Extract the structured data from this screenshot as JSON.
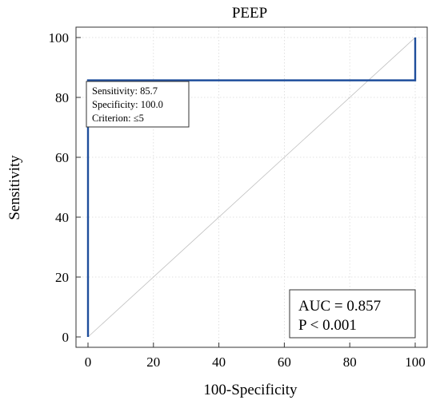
{
  "chart_data": {
    "type": "line",
    "title": "PEEP",
    "xlabel": "100-Specificity",
    "ylabel": "Sensitivity",
    "xlim": [
      0,
      100
    ],
    "ylim": [
      0,
      100
    ],
    "x_ticks": [
      0,
      20,
      40,
      60,
      80,
      100
    ],
    "y_ticks": [
      0,
      20,
      40,
      60,
      80,
      100
    ],
    "grid": true,
    "series": [
      {
        "x": [
          0,
          0,
          100,
          100
        ],
        "y": [
          0,
          85.7,
          85.7,
          100
        ],
        "color": "#1f4e9c"
      }
    ],
    "reference_line": {
      "x": [
        0,
        100
      ],
      "y": [
        0,
        100
      ],
      "color": "#bfbfbf"
    },
    "criterion_box": {
      "lines": [
        "Sensitivity: 85.7",
        "Specificity: 100.0",
        "Criterion: ≤5"
      ],
      "placement": "top-left"
    },
    "auc_box": {
      "lines": [
        "AUC = 0.857",
        "P < 0.001"
      ],
      "placement": "bottom-right"
    }
  }
}
